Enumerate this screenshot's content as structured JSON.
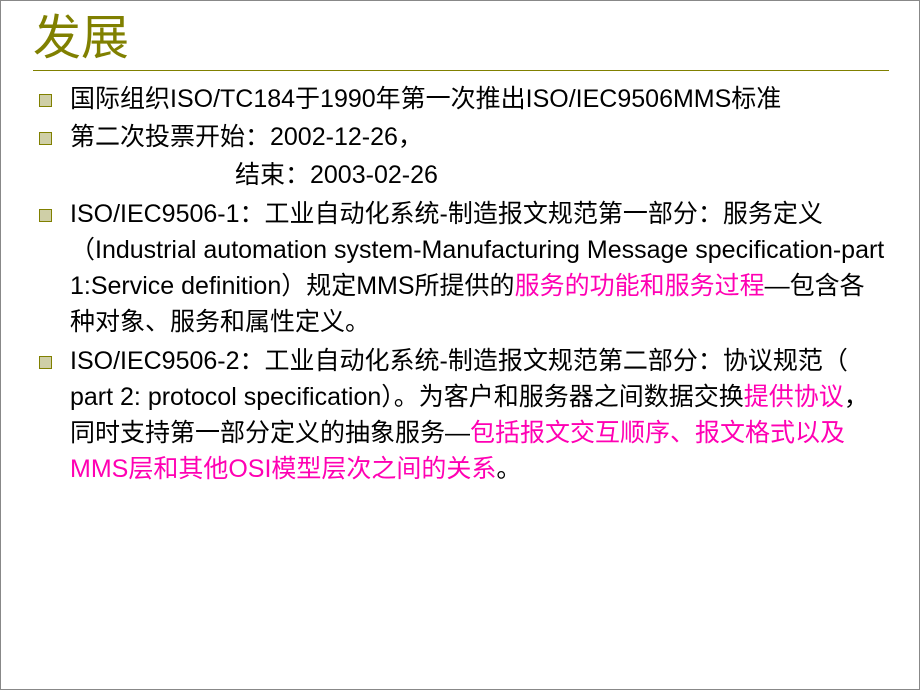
{
  "title": "发展",
  "title_color": "#808000",
  "title_fontsize": 48,
  "title_underline_color": "#808000",
  "bullet_fill": "#cfcfa7",
  "bullet_border": "#808000",
  "body_fontsize": 25,
  "body_color": "#000000",
  "highlight_color": "#ff00b3",
  "background_color": "#ffffff",
  "items": {
    "item1": "国际组织ISO/TC184于1990年第一次推出ISO/IEC9506MMS标准",
    "item2": "第二次投票开始：2002-12-26，",
    "item2_sub": "结束：2003-02-26",
    "item3_a": "ISO/IEC9506-1：工业自动化系统-制造报文规范第一部分：服务定义（Industrial automation system-Manufacturing Message specification-part 1:Service definition）规定MMS所提供的",
    "item3_h1": "服务的功能和服务过程",
    "item3_b": "—包含各种对象、服务和属性定义。",
    "item4_a": "ISO/IEC9506-2：工业自动化系统-制造报文规范第二部分：协议规范（ part 2: protocol specification）。为客户和服务器之间数据交换",
    "item4_h1": "提供协议",
    "item4_b": "，同时支持第一部分定义的抽象服务—",
    "item4_h2": "包括报文交互顺序、报文格式以及MMS层和其他OSI模型层次之间的关系",
    "item4_c": "。"
  }
}
